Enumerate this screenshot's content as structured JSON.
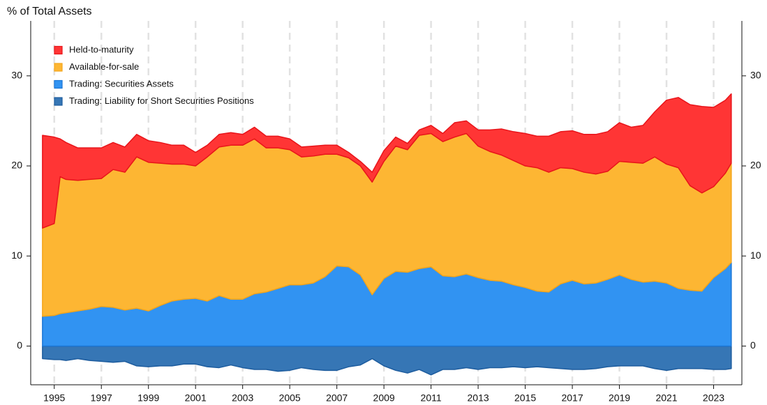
{
  "chart_data": {
    "type": "area",
    "stacked": true,
    "title": "% of Total Assets",
    "legend": "upper left",
    "x": [
      1994.5,
      1995,
      1995.25,
      1995.5,
      1996,
      1996.5,
      1997,
      1997.5,
      1998,
      1998.5,
      1999,
      1999.5,
      2000,
      2000.5,
      2001,
      2001.5,
      2002,
      2002.5,
      2003,
      2003.5,
      2004,
      2004.5,
      2005,
      2005.5,
      2006,
      2006.5,
      2007,
      2007.5,
      2008,
      2008.5,
      2009,
      2009.5,
      2010,
      2010.5,
      2011,
      2011.5,
      2012,
      2012.5,
      2013,
      2013.5,
      2014,
      2014.5,
      2015,
      2015.5,
      2016,
      2016.5,
      2017,
      2017.5,
      2018,
      2018.5,
      2019,
      2019.5,
      2020,
      2020.5,
      2021,
      2021.5,
      2022,
      2022.5,
      2023,
      2023.5,
      2023.75
    ],
    "series": [
      {
        "name": "Held-to-maturity",
        "color": "#ff3535",
        "stroke": "#e8141a",
        "values": [
          10.3,
          9.6,
          4.2,
          4.1,
          3.6,
          3.5,
          3.4,
          3.0,
          2.8,
          2.5,
          2.4,
          2.3,
          2.1,
          2.1,
          1.5,
          1.3,
          1.4,
          1.4,
          1.2,
          1.3,
          1.3,
          1.3,
          1.2,
          1.1,
          1.1,
          1.0,
          1.0,
          0.6,
          0.5,
          1.1,
          1.2,
          1.0,
          0.7,
          0.6,
          0.9,
          0.9,
          1.6,
          1.4,
          1.8,
          2.4,
          2.9,
          3.2,
          3.6,
          3.5,
          4.0,
          4.0,
          4.2,
          4.2,
          4.4,
          4.4,
          4.3,
          3.9,
          4.2,
          5.0,
          7.1,
          7.8,
          9.0,
          9.6,
          8.8,
          8.1,
          7.7
        ]
      },
      {
        "name": "Available-for-sale",
        "color": "#fdb633",
        "stroke": "#f4a51c",
        "values": [
          9.8,
          10.2,
          15.2,
          14.8,
          14.5,
          14.4,
          14.2,
          15.3,
          15.3,
          16.8,
          16.5,
          15.8,
          15.2,
          15.0,
          14.7,
          16.0,
          16.5,
          17.1,
          17.1,
          17.2,
          16.0,
          15.6,
          15.0,
          14.2,
          14.1,
          13.6,
          12.4,
          12.1,
          12.1,
          12.5,
          13.0,
          13.9,
          13.6,
          14.8,
          14.8,
          14.9,
          15.5,
          15.6,
          14.6,
          14.3,
          14.0,
          13.8,
          13.5,
          13.7,
          13.3,
          12.9,
          12.4,
          12.4,
          12.1,
          12.0,
          12.6,
          13.0,
          13.2,
          13.8,
          13.2,
          13.4,
          11.6,
          10.9,
          10.1,
          10.6,
          11.0
        ]
      },
      {
        "name": "Trading: Securities Assets",
        "color": "#3193f2",
        "stroke": "#1b76d6",
        "values": [
          3.3,
          3.4,
          3.6,
          3.7,
          3.9,
          4.1,
          4.4,
          4.3,
          4.0,
          4.2,
          3.9,
          4.5,
          5.0,
          5.2,
          5.3,
          5.0,
          5.6,
          5.2,
          5.2,
          5.8,
          6.0,
          6.4,
          6.8,
          6.8,
          7.0,
          7.7,
          8.9,
          8.8,
          7.9,
          5.7,
          7.5,
          8.3,
          8.2,
          8.6,
          8.8,
          7.8,
          7.7,
          8.0,
          7.6,
          7.3,
          7.2,
          6.8,
          6.5,
          6.1,
          6.0,
          6.9,
          7.3,
          6.9,
          7.0,
          7.4,
          7.9,
          7.4,
          7.1,
          7.2,
          7.0,
          6.4,
          6.2,
          6.1,
          7.6,
          8.6,
          9.3
        ]
      },
      {
        "name": "Trading: Liability for Short Securities Positions",
        "color": "#3676b5",
        "stroke": "#1d5c9e",
        "values": [
          -1.4,
          -1.5,
          -1.5,
          -1.6,
          -1.4,
          -1.6,
          -1.7,
          -1.8,
          -1.7,
          -2.2,
          -2.3,
          -2.2,
          -2.2,
          -2.0,
          -2.0,
          -2.3,
          -2.4,
          -2.1,
          -2.4,
          -2.6,
          -2.6,
          -2.8,
          -2.7,
          -2.4,
          -2.6,
          -2.7,
          -2.7,
          -2.3,
          -2.1,
          -1.4,
          -2.2,
          -2.7,
          -3.0,
          -2.6,
          -3.2,
          -2.6,
          -2.6,
          -2.4,
          -2.6,
          -2.4,
          -2.4,
          -2.3,
          -2.4,
          -2.3,
          -2.4,
          -2.5,
          -2.6,
          -2.6,
          -2.5,
          -2.3,
          -2.2,
          -2.2,
          -2.2,
          -2.5,
          -2.7,
          -2.5,
          -2.5,
          -2.5,
          -2.6,
          -2.6,
          -2.5
        ]
      }
    ],
    "xlim": [
      1994,
      2024.2
    ],
    "xticks": [
      1995,
      1997,
      1999,
      2001,
      2003,
      2005,
      2007,
      2009,
      2011,
      2013,
      2015,
      2017,
      2019,
      2021,
      2023
    ],
    "ylim": [
      -4.3,
      36.1
    ],
    "yticks": [
      0,
      10,
      20,
      30
    ],
    "grid": true
  }
}
